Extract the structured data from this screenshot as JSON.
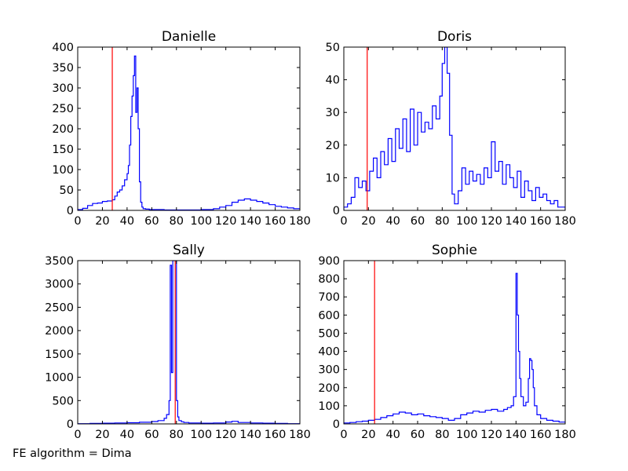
{
  "figure": {
    "footer_text": "FE algorithm = Dima"
  },
  "colors": {
    "histogram": "#0000ff",
    "marker": "#ff0000",
    "axes": "#000000"
  },
  "chart_data": [
    {
      "type": "line",
      "title": "Danielle",
      "xlim": [
        0,
        180
      ],
      "ylim": [
        0,
        400
      ],
      "xticks": [
        0,
        20,
        40,
        60,
        80,
        100,
        120,
        140,
        160,
        180
      ],
      "yticks": [
        0,
        50,
        100,
        150,
        200,
        250,
        300,
        350,
        400
      ],
      "marker_x": 28,
      "series": [
        {
          "x": [
            0,
            4,
            8,
            12,
            16,
            20,
            24,
            28,
            30,
            32,
            34,
            36,
            38,
            40,
            41,
            42,
            43,
            44,
            45,
            46,
            47,
            48,
            49,
            50,
            51,
            52,
            53,
            55,
            58,
            62,
            70,
            80,
            90,
            100,
            110,
            115,
            120,
            125,
            130,
            135,
            140,
            145,
            150,
            155,
            160,
            165,
            170,
            175,
            180
          ],
          "y": [
            2,
            5,
            12,
            17,
            18,
            22,
            23,
            26,
            35,
            45,
            50,
            60,
            75,
            90,
            110,
            160,
            230,
            280,
            330,
            378,
            240,
            300,
            200,
            70,
            20,
            8,
            4,
            3,
            2,
            2,
            1,
            1,
            1,
            2,
            4,
            8,
            12,
            20,
            25,
            28,
            25,
            22,
            18,
            14,
            10,
            8,
            6,
            4,
            3
          ]
        }
      ]
    },
    {
      "type": "line",
      "title": "Doris",
      "xlim": [
        0,
        180
      ],
      "ylim": [
        0,
        50
      ],
      "xticks": [
        0,
        20,
        40,
        60,
        80,
        100,
        120,
        140,
        160,
        180
      ],
      "yticks": [
        0,
        10,
        20,
        30,
        40,
        50
      ],
      "marker_x": 19,
      "series": [
        {
          "x": [
            0,
            3,
            6,
            9,
            12,
            15,
            18,
            21,
            24,
            27,
            30,
            33,
            36,
            39,
            42,
            45,
            48,
            51,
            54,
            57,
            60,
            63,
            66,
            69,
            72,
            75,
            78,
            80,
            82,
            84,
            86,
            88,
            90,
            93,
            96,
            99,
            102,
            105,
            108,
            111,
            114,
            117,
            120,
            123,
            126,
            129,
            132,
            135,
            138,
            141,
            144,
            147,
            150,
            153,
            156,
            159,
            162,
            165,
            168,
            171,
            174,
            177,
            180
          ],
          "y": [
            1,
            2,
            4,
            10,
            7,
            9,
            6,
            12,
            16,
            10,
            18,
            14,
            22,
            15,
            25,
            19,
            28,
            18,
            31,
            20,
            30,
            24,
            27,
            25,
            32,
            28,
            35,
            45,
            50,
            42,
            23,
            5,
            2,
            6,
            13,
            8,
            12,
            9,
            11,
            8,
            13,
            10,
            21,
            12,
            15,
            8,
            14,
            10,
            7,
            12,
            4,
            9,
            6,
            3,
            7,
            4,
            5,
            3,
            2,
            3,
            1,
            1,
            0
          ]
        }
      ]
    },
    {
      "type": "line",
      "title": "Sally",
      "xlim": [
        0,
        180
      ],
      "ylim": [
        0,
        3500
      ],
      "xticks": [
        0,
        20,
        40,
        60,
        80,
        100,
        120,
        140,
        160,
        180
      ],
      "yticks": [
        0,
        500,
        1000,
        1500,
        2000,
        2500,
        3000,
        3500
      ],
      "marker_x": 79,
      "series": [
        {
          "x": [
            0,
            10,
            20,
            30,
            40,
            50,
            60,
            65,
            70,
            72,
            74,
            75,
            76,
            77,
            78,
            79,
            80,
            81,
            82,
            84,
            86,
            90,
            100,
            110,
            120,
            125,
            130,
            140,
            150,
            160,
            170,
            180
          ],
          "y": [
            5,
            10,
            15,
            20,
            25,
            35,
            50,
            70,
            120,
            200,
            500,
            3400,
            1100,
            3500,
            3500,
            3500,
            500,
            150,
            70,
            45,
            30,
            20,
            15,
            20,
            40,
            55,
            30,
            20,
            15,
            10,
            5,
            3
          ]
        }
      ]
    },
    {
      "type": "line",
      "title": "Sophie",
      "xlim": [
        0,
        180
      ],
      "ylim": [
        0,
        900
      ],
      "xticks": [
        0,
        20,
        40,
        60,
        80,
        100,
        120,
        140,
        160,
        180
      ],
      "yticks": [
        0,
        100,
        200,
        300,
        400,
        500,
        600,
        700,
        800,
        900
      ],
      "marker_x": 25,
      "series": [
        {
          "x": [
            0,
            5,
            10,
            15,
            20,
            25,
            30,
            35,
            40,
            45,
            50,
            55,
            60,
            65,
            70,
            75,
            80,
            85,
            90,
            95,
            100,
            105,
            110,
            115,
            120,
            125,
            130,
            133,
            136,
            138,
            140,
            141,
            142,
            143,
            144,
            146,
            148,
            150,
            151,
            152,
            153,
            154,
            155,
            157,
            160,
            165,
            170,
            175,
            180
          ],
          "y": [
            5,
            8,
            12,
            15,
            20,
            25,
            35,
            45,
            55,
            65,
            60,
            50,
            55,
            45,
            40,
            35,
            30,
            20,
            30,
            50,
            60,
            70,
            65,
            75,
            80,
            70,
            80,
            90,
            100,
            150,
            830,
            600,
            400,
            250,
            150,
            100,
            120,
            250,
            360,
            350,
            300,
            200,
            100,
            50,
            30,
            20,
            15,
            10,
            5
          ]
        }
      ]
    }
  ]
}
